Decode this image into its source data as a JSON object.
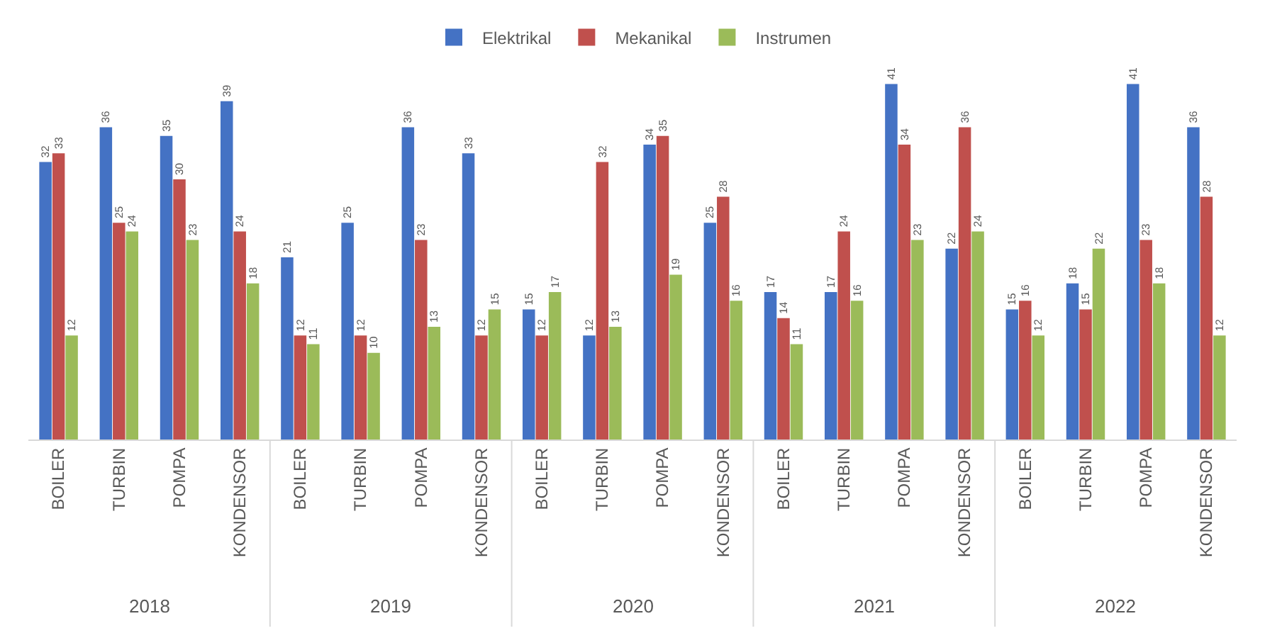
{
  "chart_data": {
    "type": "bar",
    "categories": [
      "BOILER",
      "TURBIN",
      "POMPA",
      "KONDENSOR",
      "BOILER",
      "TURBIN",
      "POMPA",
      "KONDENSOR",
      "BOILER",
      "TURBIN",
      "POMPA",
      "KONDENSOR",
      "BOILER",
      "TURBIN",
      "POMPA",
      "KONDENSOR",
      "BOILER",
      "TURBIN",
      "POMPA",
      "KONDENSOR"
    ],
    "series": [
      {
        "name": "Elektrikal",
        "color": "#4472c4",
        "values": [
          32,
          36,
          35,
          39,
          21,
          25,
          36,
          33,
          15,
          12,
          34,
          25,
          17,
          17,
          41,
          22,
          15,
          18,
          41,
          36
        ]
      },
      {
        "name": "Mekanikal",
        "color": "#c0504d",
        "values": [
          33,
          25,
          30,
          24,
          12,
          12,
          23,
          12,
          12,
          32,
          35,
          28,
          14,
          24,
          34,
          36,
          16,
          15,
          23,
          28
        ]
      },
      {
        "name": "Instrumen",
        "color": "#9bbb59",
        "values": [
          12,
          24,
          23,
          18,
          11,
          10,
          13,
          15,
          17,
          13,
          19,
          16,
          11,
          16,
          23,
          24,
          12,
          22,
          18,
          12
        ]
      }
    ],
    "annotations": [
      "2018",
      "2019",
      "2020",
      "2021",
      "2022"
    ],
    "data_labels": true,
    "legend": "top"
  }
}
